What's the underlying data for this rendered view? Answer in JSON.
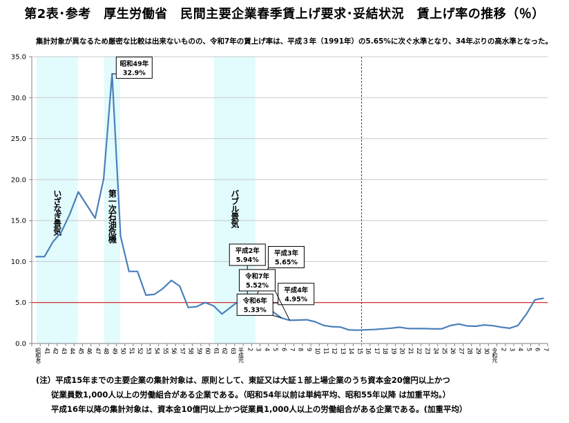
{
  "page": {
    "title": "第2表･参考　厚生労働省　民間主要企業春季賃上げ要求･妥結状況　賃上げ率の推移（％）",
    "subtitle": "集計対象が異なるため厳密な比較は出来ないものの、令和7年の賃上げ率は、平成３年（1991年）の5.65%に次ぐ水準となり、34年ぶりの高水準となった。",
    "notes": [
      "(注）平成15年までの主要企業の集計対象は、原則として、東証又は大証１部上場企業のうち資本金20億円以上かつ",
      "従業員数1,000人以上の労働組合がある企業である。（昭和54年以前は単純平均、昭和55年以降 は加重平均。）",
      "平成16年以降の集計対象は、資本金10億円以上かつ従業員1,000人以上の労働組合がある企業である。(加重平均）"
    ]
  },
  "chart_data": {
    "type": "line",
    "ylim": [
      0,
      35
    ],
    "yticks": [
      "0.0",
      "5.0",
      "10.0",
      "15.0",
      "20.0",
      "25.0",
      "30.0",
      "35.0"
    ],
    "grid": "horizontal",
    "categories": [
      "昭和40",
      "41",
      "42",
      "43",
      "44",
      "45",
      "46",
      "47",
      "48",
      "49",
      "50",
      "51",
      "52",
      "53",
      "54",
      "55",
      "56",
      "57",
      "58",
      "59",
      "60",
      "61",
      "62",
      "63",
      "平成元",
      "2",
      "3",
      "4",
      "5",
      "6",
      "7",
      "8",
      "9",
      "10",
      "11",
      "12",
      "13",
      "14",
      "15",
      "16",
      "17",
      "18",
      "19",
      "20",
      "21",
      "22",
      "23",
      "24",
      "25",
      "26",
      "27",
      "28",
      "29",
      "30",
      "令和元",
      "2",
      "3",
      "4",
      "5",
      "6",
      "7"
    ],
    "values": [
      10.6,
      10.6,
      12.4,
      13.6,
      15.8,
      18.5,
      16.9,
      15.3,
      20.1,
      32.9,
      13.1,
      8.8,
      8.8,
      5.9,
      6.0,
      6.7,
      7.7,
      7.0,
      4.4,
      4.5,
      5.0,
      4.6,
      3.6,
      4.4,
      5.2,
      5.94,
      5.65,
      4.95,
      3.89,
      3.13,
      2.83,
      2.86,
      2.9,
      2.66,
      2.21,
      2.06,
      2.01,
      1.66,
      1.63,
      1.67,
      1.71,
      1.79,
      1.87,
      1.99,
      1.83,
      1.82,
      1.83,
      1.78,
      1.8,
      2.19,
      2.38,
      2.14,
      2.11,
      2.26,
      2.18,
      2.0,
      1.86,
      2.2,
      3.6,
      5.33,
      5.52
    ],
    "series_color": "#4a7ebb",
    "reference_line": {
      "value": 5.0,
      "color": "#d00000"
    },
    "shaded_periods": [
      {
        "label": "いざなぎ景気",
        "from": "昭和40",
        "to": "45"
      },
      {
        "label": "第一次石油危機",
        "from": "48",
        "to": "50"
      },
      {
        "label": "バブル景気",
        "from": "61",
        "to": "3"
      }
    ],
    "shade_color": "#e2fbfd",
    "divider_after": "15",
    "callouts": [
      {
        "title": "昭和49年",
        "value": "32.9%",
        "category": "49",
        "anchor": "right",
        "dx": 6,
        "dy": -9
      },
      {
        "title": "平成2年",
        "value": "5.94%",
        "category": "2",
        "anchor": "center",
        "dx": 0,
        "dy": -58
      },
      {
        "title": "平成3年",
        "value": "5.65%",
        "category": "3",
        "anchor": "right",
        "dx": 18,
        "dy": -58
      },
      {
        "title": "平成4年",
        "value": "4.95%",
        "category": "4",
        "anchor": "right",
        "dx": 20,
        "dy": -13
      },
      {
        "title": "令和6年",
        "value": "5.33%",
        "category": "6",
        "anchor": "center",
        "dx": -38,
        "dy": -19
      },
      {
        "title": "令和7年",
        "value": "5.52%",
        "category": "7",
        "anchor": "center",
        "dx": -47,
        "dy": -58
      }
    ]
  }
}
